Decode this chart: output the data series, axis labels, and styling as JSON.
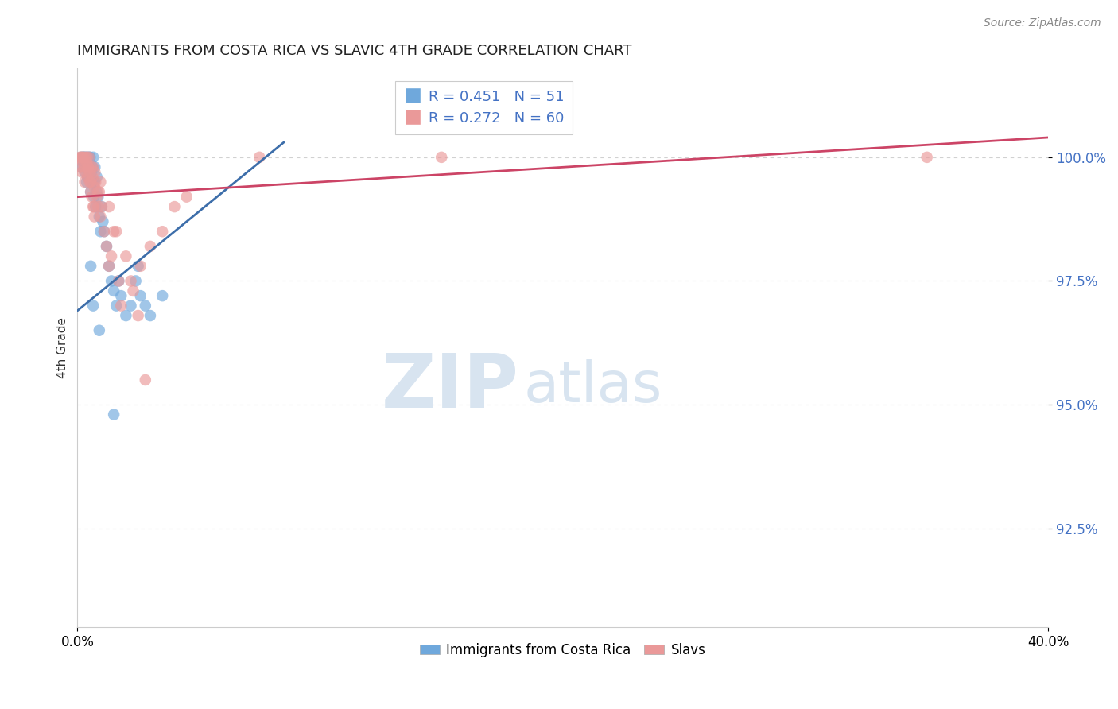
{
  "title": "IMMIGRANTS FROM COSTA RICA VS SLAVIC 4TH GRADE CORRELATION CHART",
  "source_text": "Source: ZipAtlas.com",
  "ylabel": "4th Grade",
  "x_label_bottom_left": "0.0%",
  "x_label_bottom_right": "40.0%",
  "y_ticks": [
    92.5,
    95.0,
    97.5,
    100.0
  ],
  "y_tick_labels": [
    "92.5%",
    "95.0%",
    "97.5%",
    "100.0%"
  ],
  "xlim": [
    0.0,
    40.0
  ],
  "ylim": [
    90.5,
    101.8
  ],
  "blue_R": 0.451,
  "blue_N": 51,
  "pink_R": 0.272,
  "pink_N": 60,
  "blue_color": "#6fa8dc",
  "pink_color": "#ea9999",
  "blue_line_color": "#3d6eaa",
  "pink_line_color": "#cc4466",
  "legend_label_blue": "Immigrants from Costa Rica",
  "legend_label_pink": "Slavs",
  "watermark_zip": "ZIP",
  "watermark_atlas": "atlas",
  "blue_line_x0": 0.0,
  "blue_line_y0": 96.9,
  "blue_line_x1": 8.5,
  "blue_line_y1": 100.3,
  "pink_line_x0": 0.0,
  "pink_line_y0": 99.2,
  "pink_line_x1": 40.0,
  "pink_line_y1": 100.4,
  "blue_scatter_x": [
    0.15,
    0.18,
    0.22,
    0.25,
    0.28,
    0.3,
    0.32,
    0.35,
    0.38,
    0.4,
    0.42,
    0.45,
    0.48,
    0.5,
    0.52,
    0.55,
    0.58,
    0.6,
    0.62,
    0.65,
    0.68,
    0.7,
    0.72,
    0.75,
    0.78,
    0.8,
    0.85,
    0.9,
    0.95,
    1.0,
    1.05,
    1.1,
    1.2,
    1.3,
    1.4,
    1.5,
    1.6,
    1.8,
    2.0,
    2.2,
    2.4,
    2.6,
    2.8,
    3.0,
    3.5,
    1.7,
    0.55,
    0.65,
    0.9,
    2.5,
    1.5
  ],
  "blue_scatter_y": [
    100.0,
    99.8,
    100.0,
    99.9,
    100.0,
    99.7,
    100.0,
    99.8,
    99.5,
    100.0,
    99.6,
    99.9,
    100.0,
    99.8,
    100.0,
    99.3,
    99.7,
    99.5,
    99.8,
    100.0,
    99.2,
    99.5,
    99.8,
    99.0,
    99.3,
    99.6,
    99.2,
    98.8,
    98.5,
    99.0,
    98.7,
    98.5,
    98.2,
    97.8,
    97.5,
    97.3,
    97.0,
    97.2,
    96.8,
    97.0,
    97.5,
    97.2,
    97.0,
    96.8,
    97.2,
    97.5,
    97.8,
    97.0,
    96.5,
    97.8,
    94.8
  ],
  "pink_scatter_x": [
    0.1,
    0.12,
    0.15,
    0.18,
    0.2,
    0.22,
    0.25,
    0.28,
    0.3,
    0.32,
    0.35,
    0.38,
    0.4,
    0.42,
    0.45,
    0.48,
    0.5,
    0.52,
    0.55,
    0.58,
    0.6,
    0.62,
    0.65,
    0.68,
    0.7,
    0.72,
    0.75,
    0.8,
    0.85,
    0.9,
    0.95,
    1.0,
    1.1,
    1.2,
    1.3,
    1.5,
    1.7,
    2.0,
    2.3,
    2.6,
    3.0,
    3.5,
    4.0,
    4.5,
    2.5,
    0.55,
    0.65,
    0.85,
    1.4,
    1.8,
    0.45,
    0.7,
    0.95,
    1.3,
    1.6,
    2.2,
    2.8,
    7.5,
    15.0,
    35.0
  ],
  "pink_scatter_y": [
    100.0,
    99.8,
    100.0,
    99.7,
    100.0,
    99.9,
    100.0,
    99.8,
    99.5,
    100.0,
    99.7,
    99.9,
    100.0,
    99.6,
    99.8,
    100.0,
    99.5,
    99.7,
    99.3,
    99.8,
    99.2,
    99.6,
    99.8,
    99.0,
    99.4,
    99.7,
    99.5,
    99.2,
    99.0,
    99.3,
    98.8,
    99.0,
    98.5,
    98.2,
    97.8,
    98.5,
    97.5,
    98.0,
    97.3,
    97.8,
    98.2,
    98.5,
    99.0,
    99.2,
    96.8,
    99.5,
    99.0,
    99.3,
    98.0,
    97.0,
    99.8,
    98.8,
    99.5,
    99.0,
    98.5,
    97.5,
    95.5,
    100.0,
    100.0,
    100.0
  ]
}
